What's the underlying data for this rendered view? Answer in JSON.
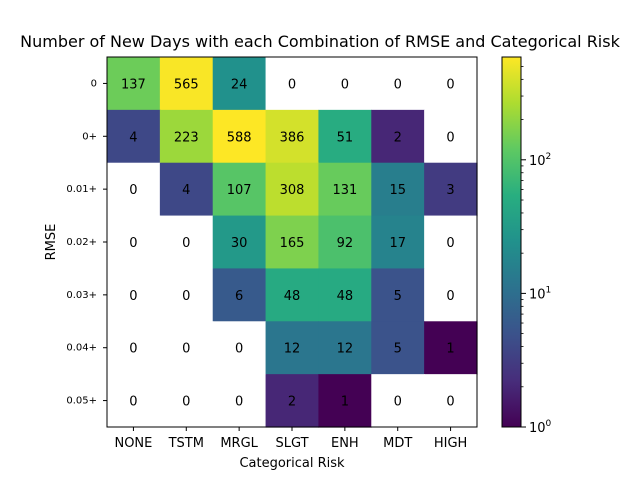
{
  "chart_data": {
    "type": "heatmap",
    "title": "Number of New Days with each Combination of RMSE and Categorical Risk",
    "xlabel": "Categorical Risk",
    "ylabel": "RMSE",
    "x_categories": [
      "NONE",
      "TSTM",
      "MRGL",
      "SLGT",
      "ENH",
      "MDT",
      "HIGH"
    ],
    "y_categories": [
      "0",
      "0+",
      "0.01+",
      "0.02+",
      "0.03+",
      "0.04+",
      "0.05+"
    ],
    "values": [
      [
        137,
        565,
        24,
        0,
        0,
        0,
        0
      ],
      [
        4,
        223,
        588,
        386,
        51,
        2,
        0
      ],
      [
        0,
        4,
        107,
        308,
        131,
        15,
        3
      ],
      [
        0,
        0,
        30,
        165,
        92,
        17,
        0
      ],
      [
        0,
        0,
        6,
        48,
        48,
        5,
        0
      ],
      [
        0,
        0,
        0,
        12,
        12,
        5,
        1
      ],
      [
        0,
        0,
        0,
        2,
        1,
        0,
        0
      ]
    ],
    "colorscale": "viridis",
    "color_scale_type": "log",
    "color_range": [
      1,
      588
    ],
    "zero_color": "#ffffff",
    "colorbar_ticks": [
      {
        "value": 1,
        "base": "10",
        "exp": "0"
      },
      {
        "value": 10,
        "base": "10",
        "exp": "1"
      },
      {
        "value": 100,
        "base": "10",
        "exp": "2"
      }
    ]
  }
}
